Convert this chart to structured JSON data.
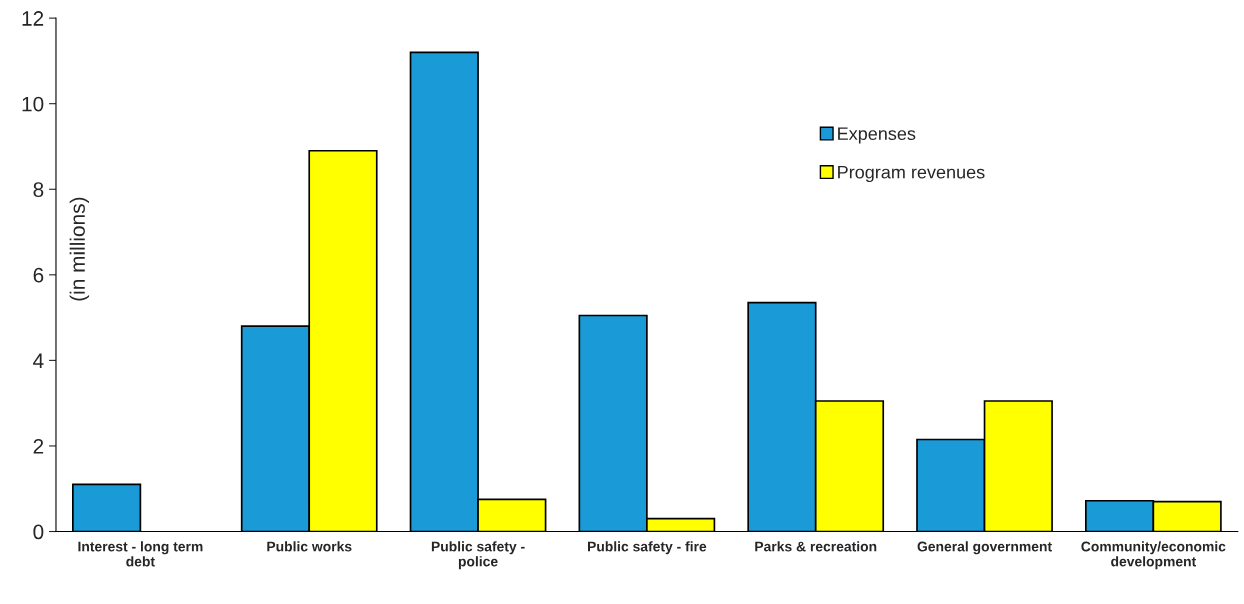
{
  "chart_data": {
    "type": "bar",
    "ylabel": "(in millions)",
    "categories": [
      "Interest - long term\ndebt",
      "Public works",
      "Public safety -\npolice",
      "Public safety - fire",
      "Parks & recreation",
      "General government",
      "Community/economic\ndevelopment"
    ],
    "series": [
      {
        "name": "Expenses",
        "color": "#1a9ad6",
        "values": [
          1.1,
          4.8,
          11.2,
          5.05,
          5.35,
          2.15,
          0.72
        ]
      },
      {
        "name": "Program revenues",
        "color": "#ffff00",
        "values": [
          null,
          8.9,
          0.75,
          0.3,
          3.05,
          3.05,
          0.7
        ]
      }
    ],
    "ylim": [
      0,
      12
    ],
    "yticks": [
      0,
      2,
      4,
      6,
      8,
      10,
      12
    ],
    "grid": false,
    "legend": "top right"
  }
}
